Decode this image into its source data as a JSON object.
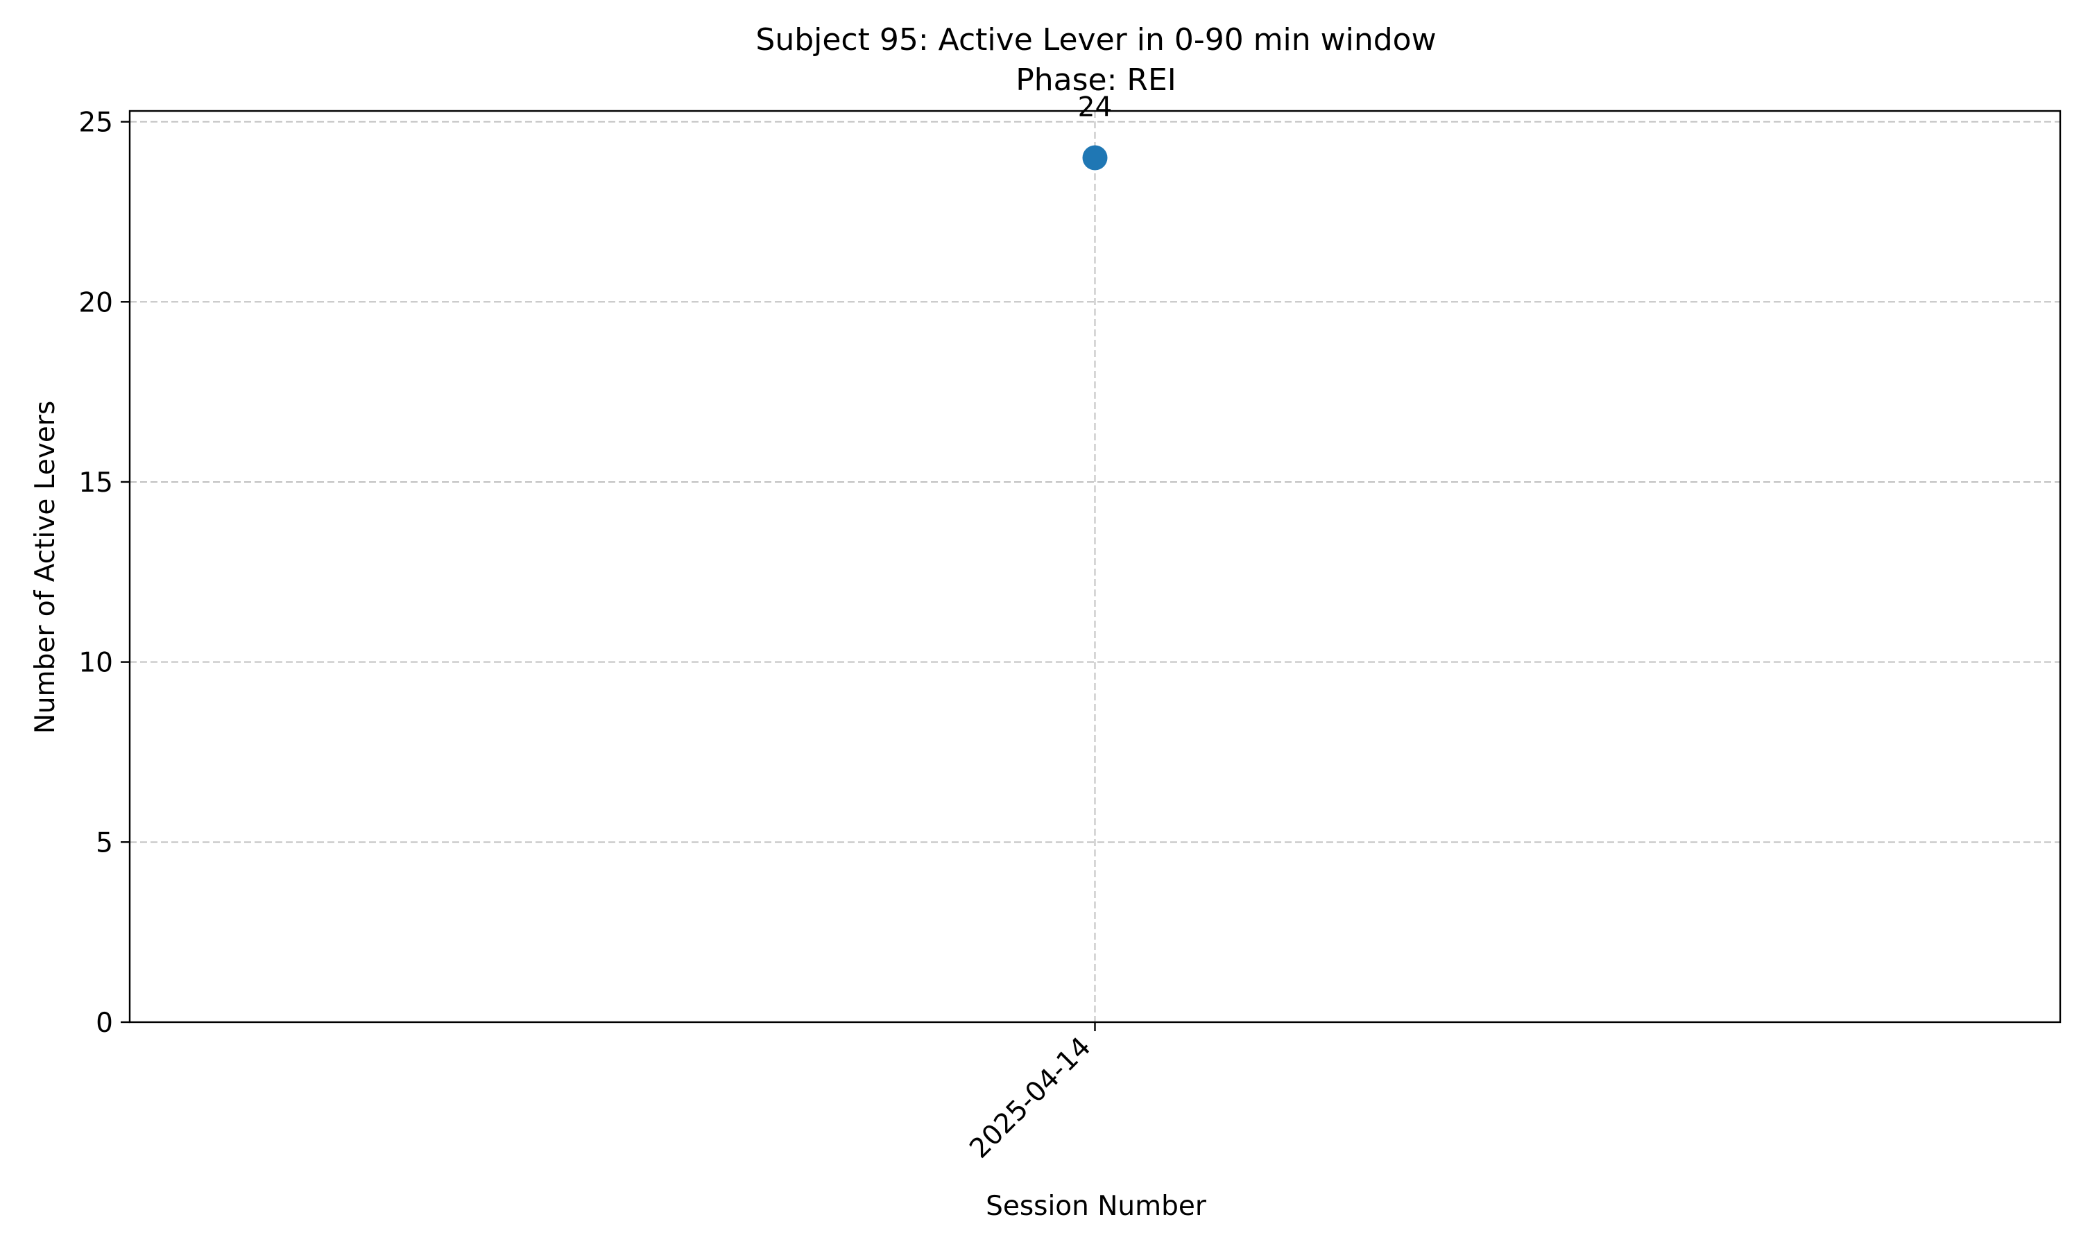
{
  "chart_data": {
    "type": "scatter",
    "title": "Subject 95: Active Lever in 0-90 min window",
    "subtitle": "Phase: REI",
    "xlabel": "Session Number",
    "ylabel": "Number of Active Levers",
    "categories": [
      "2025-04-14"
    ],
    "series": [
      {
        "values": [
          24
        ],
        "data_labels": [
          "24"
        ]
      }
    ],
    "ylim": [
      0,
      25.3
    ],
    "yticks": [
      0,
      5,
      10,
      15,
      20,
      25
    ],
    "ytick_labels": [
      "0",
      "5",
      "10",
      "15",
      "20",
      "25"
    ],
    "grid": true,
    "colors": {
      "series": "#1f77b4",
      "grid": "#c0c0c0",
      "axes": "#000000"
    }
  }
}
